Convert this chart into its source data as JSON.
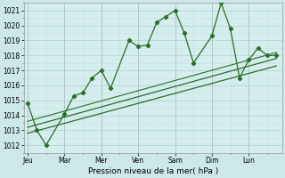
{
  "xlabel": "Pression niveau de la mer( hPa )",
  "bg_color": "#cce8e8",
  "plot_bg_color": "#d4eded",
  "grid_major_color": "#b8d4d4",
  "grid_minor_color": "#c8e0e0",
  "line_color": "#2a6e2a",
  "ylim": [
    1011.5,
    1021.5
  ],
  "yticks": [
    1012,
    1013,
    1014,
    1015,
    1016,
    1017,
    1018,
    1019,
    1020,
    1021
  ],
  "day_labels": [
    "Jeu",
    "Mar",
    "Mer",
    "Ven",
    "Sam",
    "Dim",
    "Lun"
  ],
  "day_positions": [
    0,
    2,
    4,
    6,
    8,
    10,
    12
  ],
  "xlim": [
    -0.2,
    13.8
  ],
  "x_jagged": [
    0,
    0.5,
    1.0,
    2.0,
    2.5,
    3.0,
    3.5,
    4.0,
    4.5,
    5.5,
    6.0,
    6.5,
    7.0,
    7.5,
    8.0,
    8.5,
    9.0,
    10.0,
    10.5,
    11.0,
    11.5,
    12.0,
    12.5,
    13.0,
    13.5
  ],
  "y_jagged": [
    1014.8,
    1013.0,
    1012.0,
    1014.1,
    1015.3,
    1015.5,
    1016.5,
    1017.0,
    1015.8,
    1019.0,
    1018.6,
    1018.7,
    1020.2,
    1020.6,
    1021.0,
    1019.5,
    1017.5,
    1019.3,
    1021.5,
    1019.8,
    1016.5,
    1017.7,
    1018.5,
    1018.0,
    1018.0
  ],
  "trend1_x": [
    0,
    13.5
  ],
  "trend1_y": [
    1013.2,
    1017.8
  ],
  "trend2_x": [
    0,
    13.5
  ],
  "trend2_y": [
    1012.8,
    1017.3
  ],
  "trend3_x": [
    0,
    13.5
  ],
  "trend3_y": [
    1013.6,
    1018.2
  ]
}
